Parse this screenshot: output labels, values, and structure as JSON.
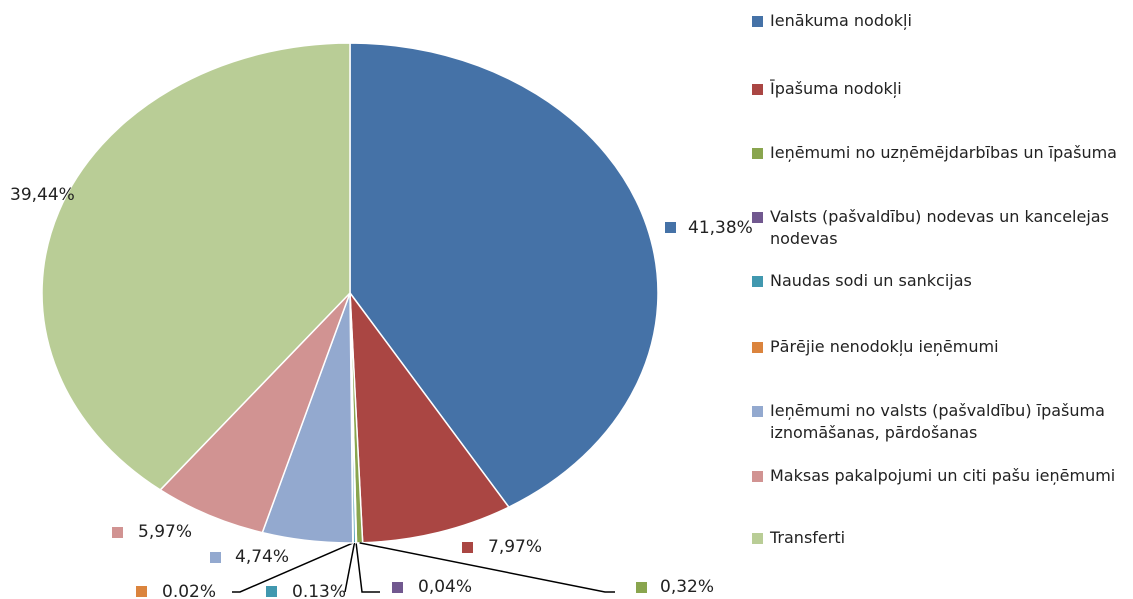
{
  "chart_data": {
    "type": "pie",
    "categories": [
      "Ienākuma nodokļi",
      "Īpašuma nodokļi",
      "Ieņēmumi no uzņēmējdarbības un īpašuma",
      "Valsts (pašvaldību) nodevas un kancelejas nodevas",
      "Naudas sodi un sankcijas",
      "Pārējie nenodokļu ieņēmumi",
      "Ieņēmumi no valsts (pašvaldību) īpašuma iznomāšanas, pārdošanas",
      "Maksas pakalpojumi un citi pašu ieņēmumi",
      "Transferti"
    ],
    "values": [
      41.38,
      7.97,
      0.32,
      0.04,
      0.13,
      0.02,
      4.74,
      5.97,
      39.44
    ],
    "value_labels": [
      "41,38%",
      "7,97%",
      "0,32%",
      "0,04%",
      "0.13%",
      "0.02%",
      "4,74%",
      "5,97%",
      "39,44%"
    ],
    "colors": [
      "#4572a7",
      "#aa4643",
      "#89a54e",
      "#71588f",
      "#4198af",
      "#db843d",
      "#93a9cf",
      "#d19392",
      "#b9cd96"
    ],
    "legend": "right"
  }
}
